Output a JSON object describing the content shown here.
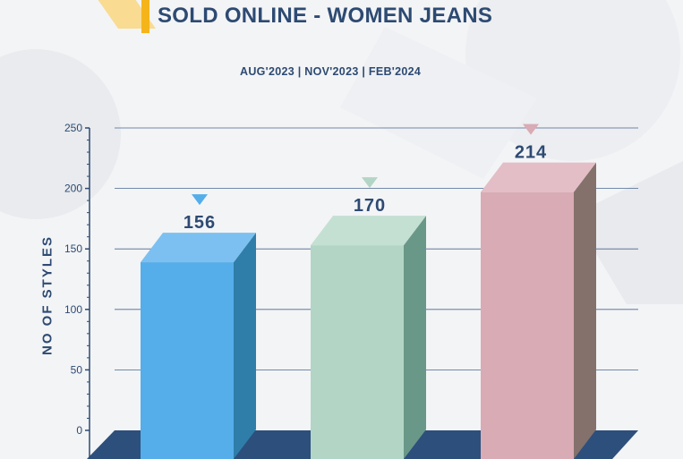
{
  "header": {
    "title": "SOLD ONLINE - WOMEN JEANS",
    "subtitle": "AUG'2023  |  NOV'2023  |  FEB'2024"
  },
  "colors": {
    "accent": "#f5b41a",
    "text": "#2d4a72",
    "floor": "#2d4f7c"
  },
  "chart_data": {
    "type": "bar",
    "categories": [
      "AUG'2023",
      "NOV'2023",
      "FEB'2024"
    ],
    "values": [
      156,
      170,
      214
    ],
    "value_labels": [
      "156",
      "170",
      "214"
    ],
    "ylabel": "NO OF STYLES",
    "ylim": [
      0,
      250
    ],
    "yticks": [
      0,
      50,
      100,
      150,
      200,
      250
    ],
    "ytick_labels": [
      "0",
      "50",
      "100",
      "150",
      "200",
      "250"
    ],
    "grid": true,
    "bar_colors": [
      {
        "front": "#55adea",
        "top": "#7bc0f0",
        "side": "#2f7ea9",
        "marker": "#55adea"
      },
      {
        "front": "#b3d5c5",
        "top": "#c4e0d3",
        "side": "#6a9888",
        "marker": "#b3d5c5"
      },
      {
        "front": "#d9abb5",
        "top": "#e3bec6",
        "side": "#84716c",
        "marker": "#d9abb5"
      }
    ]
  }
}
